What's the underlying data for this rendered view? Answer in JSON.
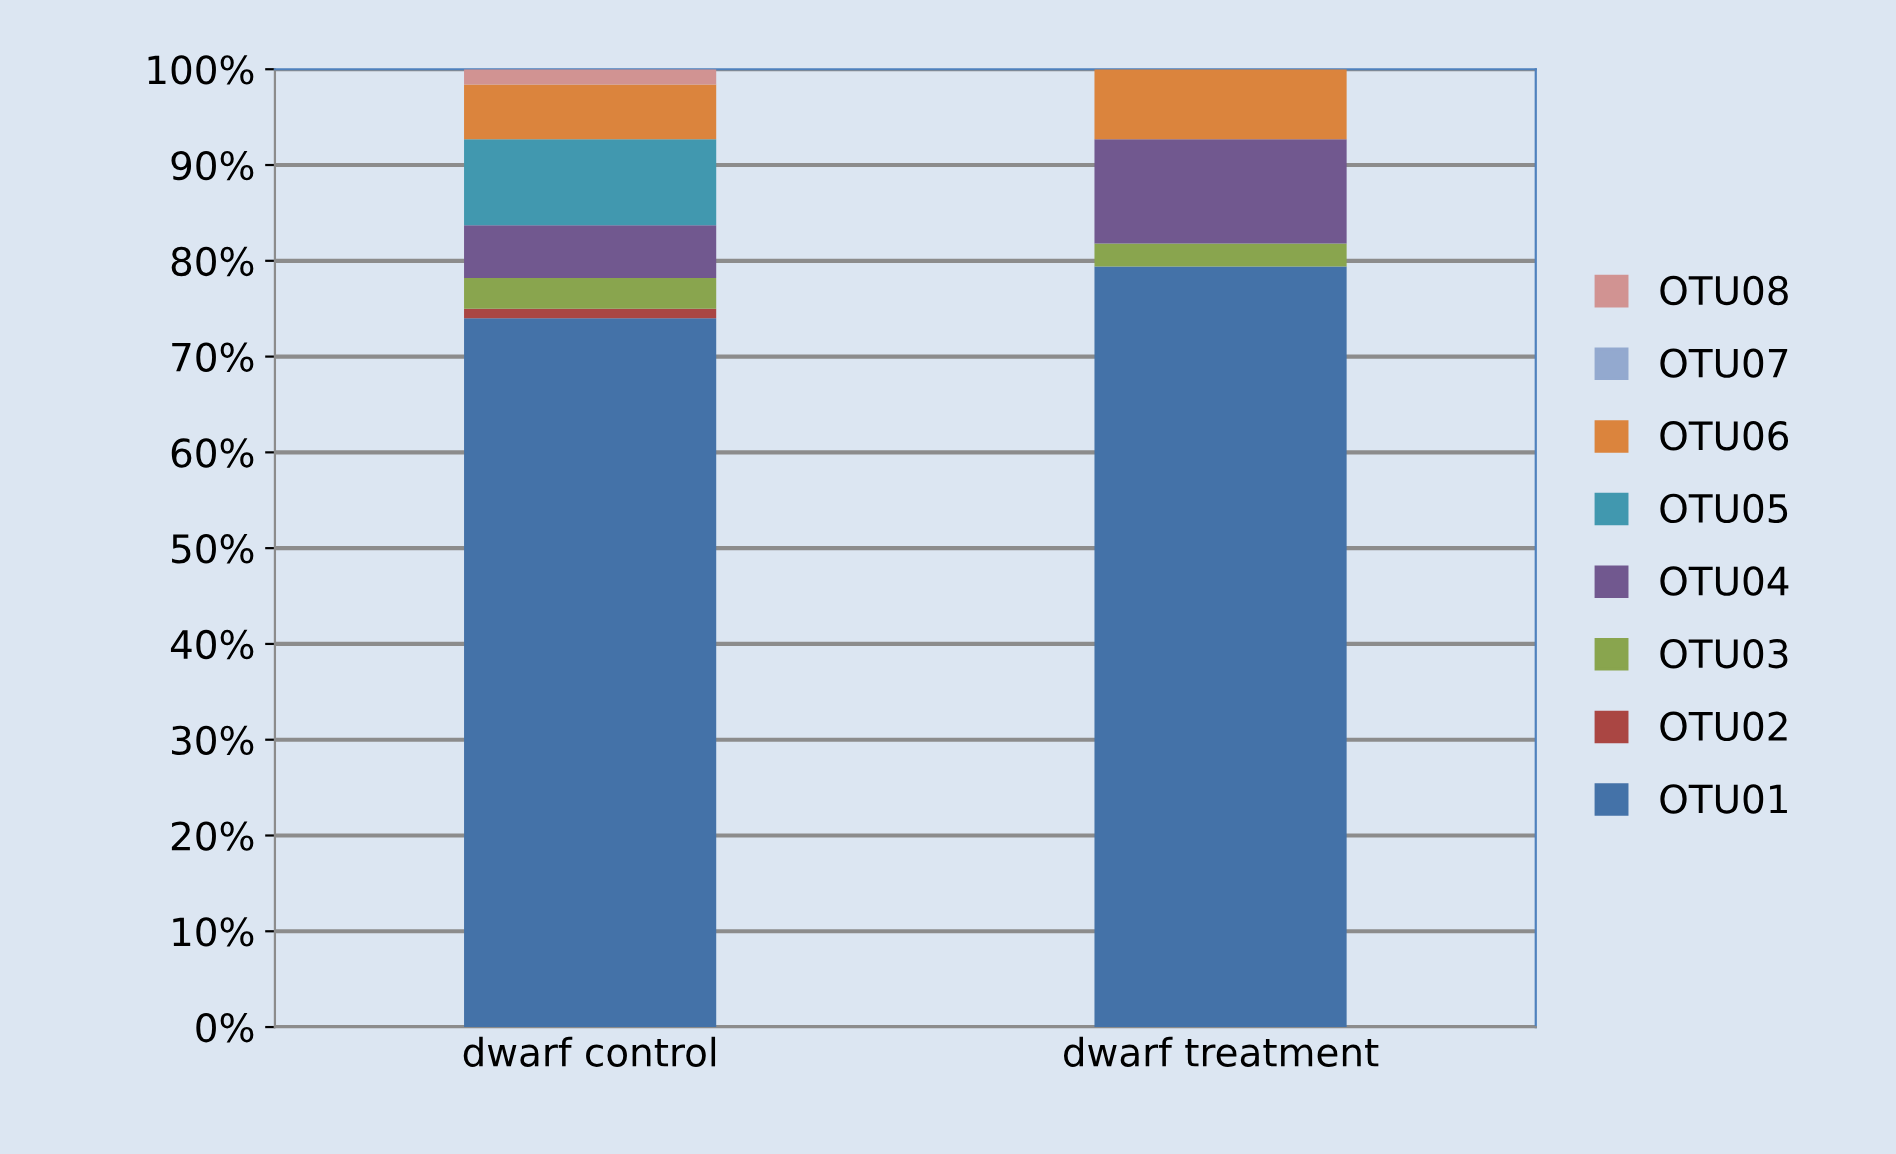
{
  "chart_data": {
    "type": "bar",
    "stacked": true,
    "categories": [
      "dwarf control",
      "dwarf treatment"
    ],
    "series": [
      {
        "name": "OTU01",
        "color": "#4472a8",
        "values": [
          74.0,
          79.4
        ]
      },
      {
        "name": "OTU02",
        "color": "#aa4643",
        "values": [
          1.0,
          0
        ]
      },
      {
        "name": "OTU03",
        "color": "#89a54e",
        "values": [
          3.2,
          2.4
        ]
      },
      {
        "name": "OTU04",
        "color": "#71588f",
        "values": [
          5.5,
          10.9
        ]
      },
      {
        "name": "OTU05",
        "color": "#4198af",
        "values": [
          9.0,
          0
        ]
      },
      {
        "name": "OTU06",
        "color": "#db843d",
        "values": [
          5.7,
          7.3
        ]
      },
      {
        "name": "OTU07",
        "color": "#93a9cf",
        "values": [
          0,
          0
        ]
      },
      {
        "name": "OTU08",
        "color": "#d19392",
        "values": [
          1.6,
          0
        ]
      }
    ],
    "ylim": [
      0,
      100
    ],
    "yticks": [
      {
        "value": 0,
        "label": "0%"
      },
      {
        "value": 10,
        "label": "10%"
      },
      {
        "value": 20,
        "label": "20%"
      },
      {
        "value": 30,
        "label": "30%"
      },
      {
        "value": 40,
        "label": "40%"
      },
      {
        "value": 50,
        "label": "50%"
      },
      {
        "value": 60,
        "label": "60%"
      },
      {
        "value": 70,
        "label": "70%"
      },
      {
        "value": 80,
        "label": "80%"
      },
      {
        "value": 90,
        "label": "90%"
      },
      {
        "value": 100,
        "label": "100%"
      }
    ],
    "grid": "y",
    "legend": "right"
  }
}
